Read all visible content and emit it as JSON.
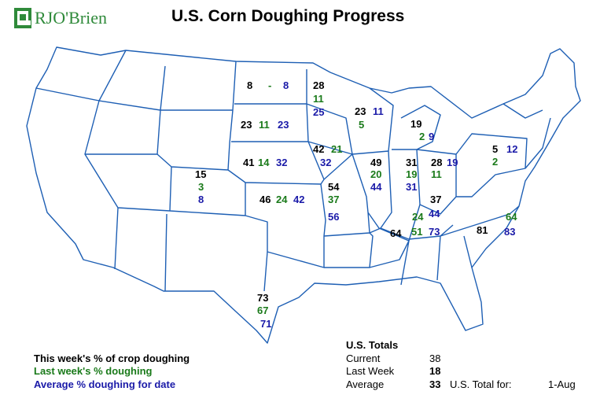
{
  "header": {
    "logo_text": "RJO'Brien",
    "title": "U.S. Corn Doughing Progress"
  },
  "colors": {
    "current": "#000000",
    "last_week": "#1a7a1a",
    "average": "#1a1aa8",
    "state_border": "#1e5fb4",
    "logo_green": "#2f8a3a"
  },
  "states": {
    "ND": {
      "current": "8",
      "last_week": "-",
      "average": "8"
    },
    "MN": {
      "current": "28",
      "last_week": "11",
      "average": "25"
    },
    "SD": {
      "current": "23",
      "last_week": "11",
      "average": "23"
    },
    "WI": {
      "current": "23",
      "last_week": "5",
      "average": "11"
    },
    "MI": {
      "current": "19",
      "last_week": "2",
      "average": "9"
    },
    "NE": {
      "current": "41",
      "last_week": "14",
      "average": "32"
    },
    "IA": {
      "current": "42",
      "last_week": "21",
      "average": "32"
    },
    "IL": {
      "current": "49",
      "last_week": "20",
      "average": "44"
    },
    "IN": {
      "current": "31",
      "last_week": "19",
      "average": "31"
    },
    "OH": {
      "current": "28",
      "last_week": "11",
      "average": "19"
    },
    "PA": {
      "current": "5",
      "last_week": "2",
      "average": "12"
    },
    "CO": {
      "current": "15",
      "last_week": "3",
      "average": "8"
    },
    "KS": {
      "current": "46",
      "last_week": "24",
      "average": "42"
    },
    "MO": {
      "current": "54",
      "last_week": "37",
      "average": "56"
    },
    "KY": {
      "current": "37",
      "last_week": "24",
      "average": "44"
    },
    "TN": {
      "current": "64",
      "last_week": "51",
      "average": "73"
    },
    "NC": {
      "current": "81",
      "last_week": "64",
      "average": "83"
    },
    "TX": {
      "current": "73",
      "last_week": "67",
      "average": "71"
    }
  },
  "legend": {
    "current": "This week's % of crop doughing",
    "last_week": "Last week's % doughing",
    "average": "Average % doughing for date"
  },
  "totals": {
    "heading": "U.S. Totals",
    "current_label": "Current",
    "current_value": "38",
    "last_week_label": "Last Week",
    "last_week_value": "18",
    "average_label": "Average",
    "average_value": "33",
    "total_for_label": "U.S. Total for:",
    "date": "1-Aug"
  }
}
